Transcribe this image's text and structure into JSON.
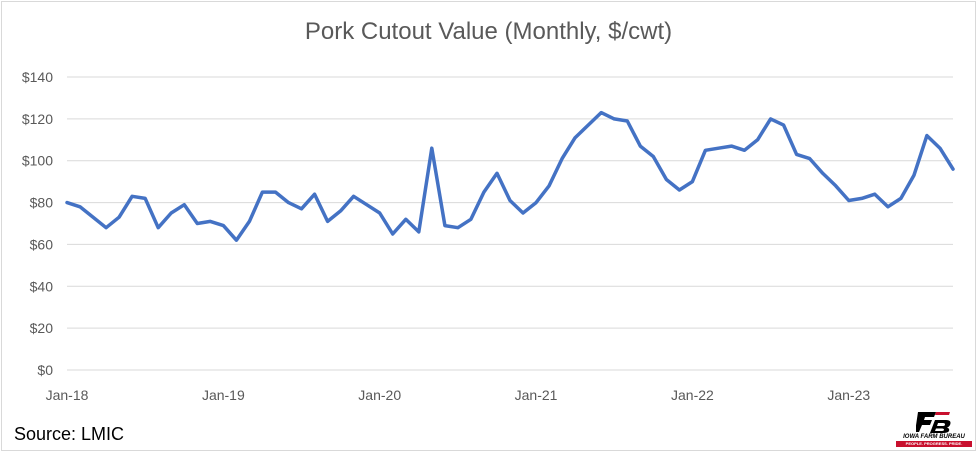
{
  "chart_data": {
    "type": "line",
    "title": "Pork Cutout Value (Monthly, $/cwt)",
    "xlabel": "",
    "ylabel": "",
    "ylim": [
      0,
      140
    ],
    "y_ticks": [
      "$0",
      "$20",
      "$40",
      "$60",
      "$80",
      "$100",
      "$120",
      "$140"
    ],
    "x_tick_labels": [
      "Jan-18",
      "Jan-19",
      "Jan-20",
      "Jan-21",
      "Jan-22",
      "Jan-23"
    ],
    "grid": true,
    "line_color": "#4472c4",
    "series": [
      {
        "values": [
          80,
          78,
          73,
          68,
          73,
          83,
          82,
          68,
          75,
          79,
          70,
          71,
          69,
          62,
          71,
          85,
          85,
          80,
          77,
          84,
          71,
          76,
          83,
          79,
          75,
          65,
          72,
          66,
          106,
          69,
          68,
          72,
          85,
          94,
          81,
          75,
          80,
          88,
          101,
          111,
          117,
          123,
          120,
          119,
          107,
          102,
          91,
          86,
          90,
          105,
          106,
          107,
          105,
          110,
          120,
          117,
          103,
          101,
          94,
          88,
          81,
          82,
          84,
          78,
          82,
          93,
          112,
          106,
          96
        ]
      }
    ]
  },
  "source_text": "Source: LMIC",
  "logo": {
    "name": "IOWA FARM BUREAU",
    "tagline": "PEOPLE. PROGRESS. PRIDE.",
    "color": "#c8102e"
  }
}
